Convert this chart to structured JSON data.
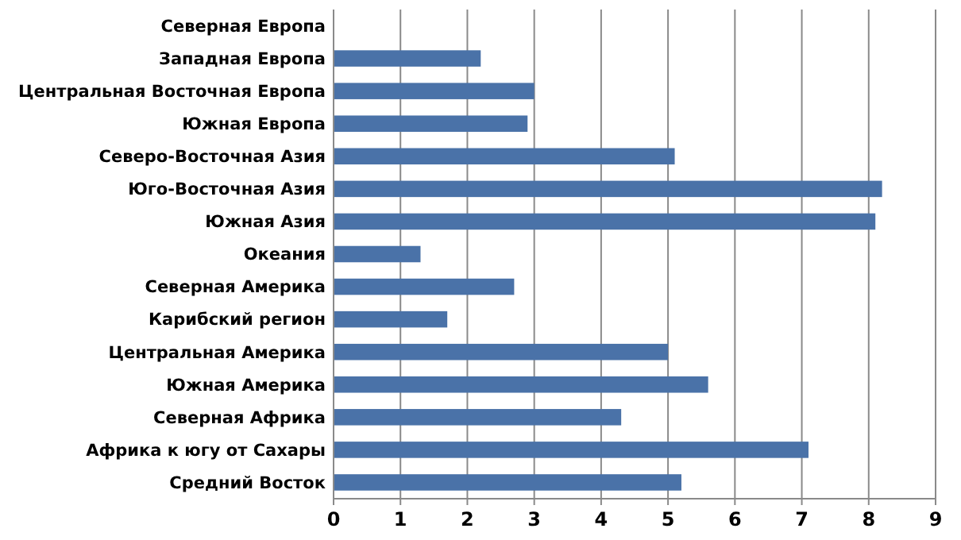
{
  "chart_data": {
    "type": "bar",
    "orientation": "horizontal",
    "categories": [
      "Северная Европа",
      "Западная Европа",
      "Центральная Восточная Европа",
      "Южная Европа",
      "Северо-Восточная Азия",
      "Юго-Восточная Азия",
      "Южная Азия",
      "Океания",
      "Северная Америка",
      "Карибский регион",
      "Центральная Америка",
      "Южная Америка",
      "Северная Африка",
      "Африка к югу от Сахары",
      "Средний Восток"
    ],
    "values": [
      0,
      2.2,
      3.0,
      2.9,
      5.1,
      8.2,
      8.1,
      1.3,
      2.7,
      1.7,
      5.0,
      5.6,
      4.3,
      7.1,
      5.2
    ],
    "color": "#4a72a8",
    "xlim": [
      0,
      9
    ],
    "xticks": [
      0,
      1,
      2,
      3,
      4,
      5,
      6,
      7,
      8,
      9
    ],
    "grid": "x"
  }
}
